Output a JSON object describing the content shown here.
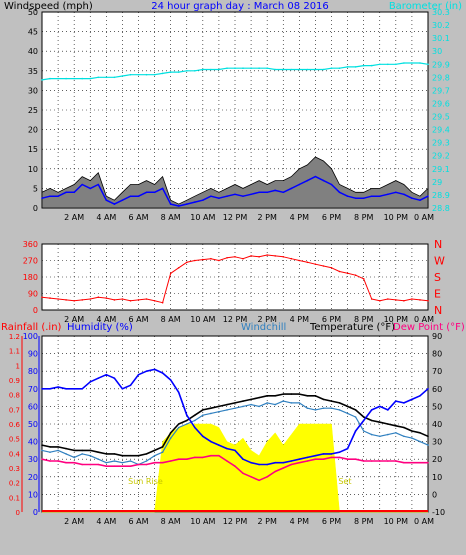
{
  "colors": {
    "background": "#c0c0c0",
    "plot_background": "#ffffff",
    "grid": "#000000",
    "wind": "#000000",
    "gust": "#808080",
    "wind_avg": "#0000ff",
    "barometer": "#00e0e0",
    "direction": "#ff0000",
    "rain": "#ff0000",
    "humidity": "#0000ff",
    "windchill": "#3080c0",
    "temperature": "#000000",
    "dewpoint": "#ff0080",
    "sun": "#ffff00",
    "sun_label": "#c8c800",
    "title": "#0000ff"
  },
  "chart_data": [
    {
      "type": "line",
      "title": "24 hour graph day : March 08 2016",
      "ylabel_left": "Windspeed (mph)",
      "ylabel_right": "Barometer (in)",
      "ylim_left": [
        0,
        50
      ],
      "ylim_right": [
        28.8,
        30.3
      ],
      "yticks_left": [
        "0",
        "5",
        "10",
        "15",
        "20",
        "25",
        "30",
        "35",
        "40",
        "45",
        "50"
      ],
      "yticks_right": [
        "28.8",
        "28.9",
        "29",
        "29.1",
        "29.2",
        "29.3",
        "29.4",
        "29.5",
        "29.6",
        "29.7",
        "29.8",
        "29.9",
        "30",
        "30.1",
        "30.2",
        "30.3"
      ],
      "x_tick_labels": [
        "2 AM",
        "4 AM",
        "6 AM",
        "8 AM",
        "10 AM",
        "12 PM",
        "2 PM",
        "4 PM",
        "6 PM",
        "8 PM",
        "10 PM",
        "0 AM"
      ],
      "x_hours": [
        0,
        0.5,
        1,
        1.5,
        2,
        2.5,
        3,
        3.5,
        4,
        4.5,
        5,
        5.5,
        6,
        6.5,
        7,
        7.5,
        8,
        8.5,
        9,
        9.5,
        10,
        10.5,
        11,
        11.5,
        12,
        12.5,
        13,
        13.5,
        14,
        14.5,
        15,
        15.5,
        16,
        16.5,
        17,
        17.5,
        18,
        18.5,
        19,
        19.5,
        20,
        20.5,
        21,
        21.5,
        22,
        22.5,
        23,
        23.5,
        24
      ],
      "series": [
        {
          "key": "gust",
          "values": [
            4,
            5,
            4,
            5,
            6,
            8,
            7,
            9,
            3,
            2,
            4,
            6,
            6,
            7,
            6,
            8,
            2,
            1,
            2,
            3,
            4,
            5,
            4,
            5,
            6,
            5,
            6,
            7,
            6,
            7,
            7,
            8,
            10,
            11,
            13,
            12,
            10,
            6,
            5,
            4,
            4,
            5,
            5,
            6,
            7,
            6,
            4,
            3,
            5
          ]
        },
        {
          "key": "wind",
          "values": [
            2.5,
            3,
            3,
            4,
            4,
            6,
            5,
            6,
            2,
            1,
            2,
            3,
            3,
            4,
            4,
            5,
            1,
            0.5,
            1,
            1.5,
            2,
            3,
            2.5,
            3,
            3.5,
            3,
            3.5,
            4,
            4,
            4.5,
            4,
            5,
            6,
            7,
            8,
            7,
            6,
            4,
            3,
            2.5,
            2.5,
            3,
            3,
            3.5,
            4,
            3.5,
            2.5,
            2,
            3
          ]
        },
        {
          "key": "barometer",
          "values": [
            29.78,
            29.79,
            29.79,
            29.79,
            29.79,
            29.79,
            29.79,
            29.8,
            29.8,
            29.8,
            29.81,
            29.82,
            29.82,
            29.82,
            29.82,
            29.83,
            29.84,
            29.84,
            29.85,
            29.85,
            29.86,
            29.86,
            29.86,
            29.87,
            29.87,
            29.87,
            29.87,
            29.87,
            29.87,
            29.86,
            29.86,
            29.86,
            29.86,
            29.86,
            29.86,
            29.86,
            29.87,
            29.87,
            29.88,
            29.88,
            29.89,
            29.89,
            29.9,
            29.9,
            29.9,
            29.91,
            29.91,
            29.91,
            29.9
          ]
        }
      ]
    },
    {
      "type": "line",
      "title": "",
      "ylim_left": [
        0,
        360
      ],
      "yticks_left": [
        "0",
        "90",
        "180",
        "270",
        "360"
      ],
      "right_labels": [
        "N",
        "W",
        "S",
        "E",
        "N"
      ],
      "x_tick_labels": [
        "2 AM",
        "4 AM",
        "6 AM",
        "8 AM",
        "10 AM",
        "12 PM",
        "2 PM",
        "4 PM",
        "6 PM",
        "8 PM",
        "10 PM",
        "0 AM"
      ],
      "x_hours": [
        0,
        0.5,
        1,
        1.5,
        2,
        2.5,
        3,
        3.5,
        4,
        4.5,
        5,
        5.5,
        6,
        6.5,
        7,
        7.5,
        8,
        8.5,
        9,
        9.5,
        10,
        10.5,
        11,
        11.5,
        12,
        12.5,
        13,
        13.5,
        14,
        14.5,
        15,
        15.5,
        16,
        16.5,
        17,
        17.5,
        18,
        18.5,
        19,
        19.5,
        20,
        20.5,
        21,
        21.5,
        22,
        22.5,
        23,
        23.5,
        24
      ],
      "series": [
        {
          "key": "direction",
          "values": [
            70,
            65,
            60,
            55,
            50,
            55,
            60,
            70,
            65,
            55,
            60,
            50,
            55,
            60,
            50,
            40,
            200,
            230,
            260,
            270,
            275,
            280,
            270,
            285,
            290,
            280,
            295,
            290,
            300,
            295,
            290,
            280,
            270,
            260,
            250,
            240,
            230,
            210,
            200,
            190,
            170,
            60,
            50,
            60,
            55,
            50,
            60,
            55,
            50
          ]
        }
      ]
    },
    {
      "type": "line",
      "title": "",
      "ylabel_left_1": "Rainfall (.in)",
      "ylabel_left_2": "Humidity (%)",
      "label_windchill": "Windchill",
      "label_temperature": "Temperature (°F)",
      "label_dewpoint": "Dew Point (°F)",
      "rain_ticks": [
        "0",
        "0.1",
        "0.2",
        "0.3",
        "0.4",
        "0.5",
        "0.6",
        "0.7",
        "0.8",
        "0.9",
        "1",
        "1.1",
        "1.2"
      ],
      "humidity_ticks": [
        "0",
        "10",
        "20",
        "30",
        "40",
        "50",
        "60",
        "70",
        "80",
        "90",
        "100"
      ],
      "temp_ticks": [
        "-10",
        "0",
        "10",
        "20",
        "30",
        "40",
        "50",
        "60",
        "70",
        "80",
        "90"
      ],
      "ylim_rain": [
        0,
        1.2
      ],
      "ylim_humidity": [
        0,
        100
      ],
      "ylim_temp": [
        -10,
        90
      ],
      "x_tick_labels": [
        "2 AM",
        "4 AM",
        "6 AM",
        "8 AM",
        "10 AM",
        "12 PM",
        "2 PM",
        "4 PM",
        "6 PM",
        "8 PM",
        "10 PM",
        "0 AM"
      ],
      "sunrise_label": "Sun Rise",
      "sunset_label": "Set",
      "sunrise_hour": 6.6,
      "sunset_hour": 18.3,
      "x_hours": [
        0,
        0.5,
        1,
        1.5,
        2,
        2.5,
        3,
        3.5,
        4,
        4.5,
        5,
        5.5,
        6,
        6.5,
        7,
        7.5,
        8,
        8.5,
        9,
        9.5,
        10,
        10.5,
        11,
        11.5,
        12,
        12.5,
        13,
        13.5,
        14,
        14.5,
        15,
        15.5,
        16,
        16.5,
        17,
        17.5,
        18,
        18.5,
        19,
        19.5,
        20,
        20.5,
        21,
        21.5,
        22,
        22.5,
        23,
        23.5,
        24
      ],
      "series": [
        {
          "key": "sun",
          "values": [
            0,
            0,
            0,
            0,
            0,
            0,
            0,
            0,
            0,
            0,
            0,
            0,
            0,
            0,
            0,
            30,
            35,
            38,
            40,
            40,
            40,
            40,
            38,
            30,
            28,
            32,
            25,
            22,
            30,
            35,
            28,
            34,
            40,
            40,
            40,
            40,
            40,
            0,
            0,
            0,
            0,
            0,
            0,
            0,
            0,
            0,
            0,
            0,
            0
          ]
        },
        {
          "key": "humidity",
          "values": [
            70,
            70,
            71,
            70,
            70,
            70,
            74,
            76,
            78,
            76,
            70,
            72,
            78,
            80,
            81,
            79,
            75,
            68,
            55,
            48,
            43,
            40,
            38,
            36,
            35,
            30,
            28,
            27,
            27,
            28,
            28,
            29,
            30,
            31,
            32,
            33,
            33,
            34,
            36,
            46,
            52,
            58,
            60,
            58,
            63,
            62,
            64,
            66,
            70
          ]
        },
        {
          "key": "temperature",
          "values": [
            28,
            27,
            27,
            26,
            25,
            25,
            25,
            24,
            23,
            23,
            22,
            22,
            22,
            23,
            25,
            27,
            35,
            40,
            42,
            45,
            48,
            49,
            50,
            51,
            52,
            53,
            54,
            55,
            56,
            56,
            57,
            57,
            57,
            56,
            56,
            54,
            53,
            52,
            50,
            48,
            44,
            42,
            41,
            40,
            39,
            38,
            36,
            35,
            33
          ]
        },
        {
          "key": "windchill",
          "values": [
            25,
            24,
            25,
            23,
            21,
            23,
            22,
            20,
            18,
            19,
            18,
            19,
            17,
            19,
            22,
            24,
            32,
            38,
            40,
            42,
            45,
            46,
            47,
            48,
            49,
            50,
            51,
            50,
            52,
            51,
            53,
            52,
            52,
            49,
            48,
            49,
            49,
            48,
            46,
            44,
            36,
            34,
            33,
            34,
            35,
            33,
            32,
            30,
            28
          ]
        },
        {
          "key": "dewpoint",
          "values": [
            20,
            19,
            19,
            18,
            18,
            17,
            17,
            17,
            16,
            16,
            16,
            16,
            17,
            17,
            18,
            18,
            19,
            20,
            20,
            21,
            21,
            22,
            22,
            19,
            16,
            12,
            10,
            8,
            10,
            13,
            15,
            17,
            18,
            19,
            20,
            20,
            21,
            21,
            20,
            20,
            19,
            19,
            19,
            19,
            19,
            18,
            18,
            18,
            18
          ]
        }
      ]
    }
  ]
}
